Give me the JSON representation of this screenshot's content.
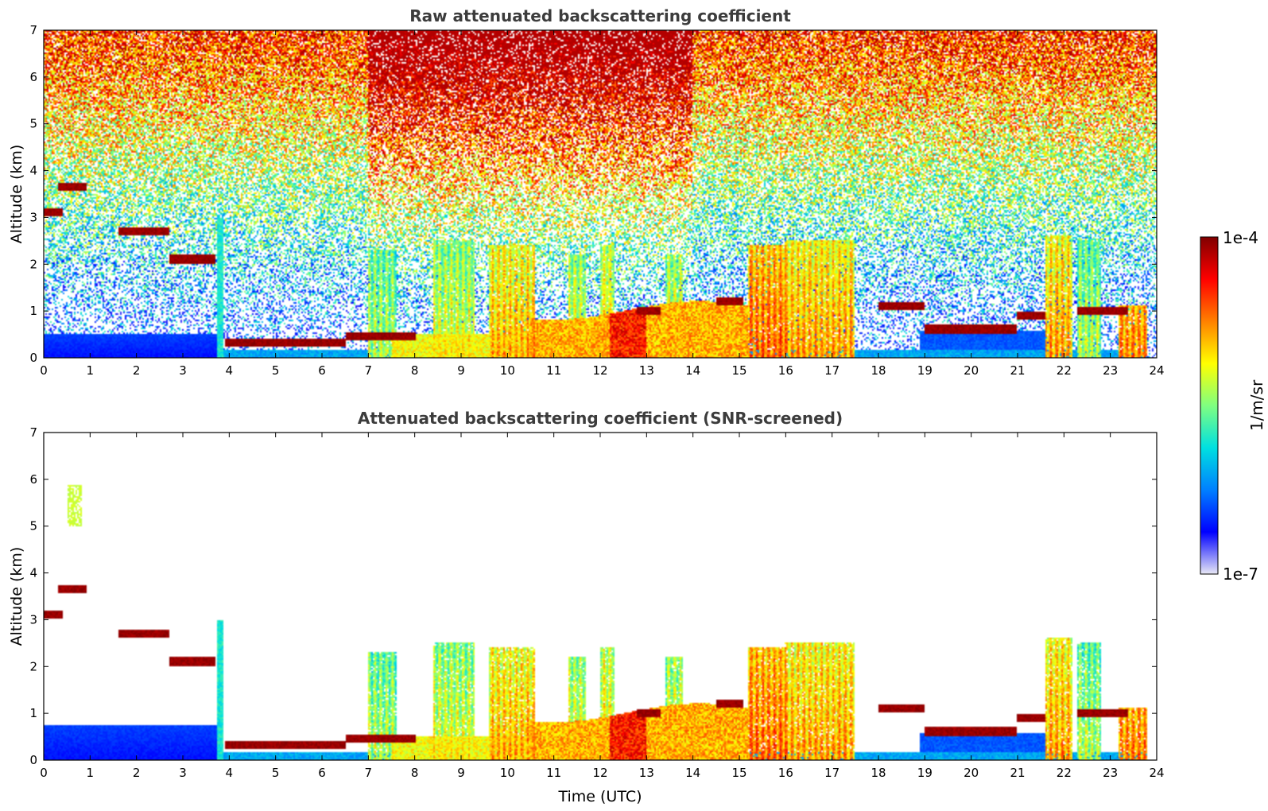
{
  "chart_data": [
    {
      "type": "heatmap",
      "title": "Raw attenuated backscattering coefficient",
      "xlabel": "",
      "ylabel": "Altitude (km)",
      "xlim": [
        0,
        24
      ],
      "ylim": [
        0,
        7
      ],
      "xticks": [
        0,
        1,
        2,
        3,
        4,
        5,
        6,
        7,
        8,
        9,
        10,
        11,
        12,
        13,
        14,
        15,
        16,
        17,
        18,
        19,
        20,
        21,
        22,
        23,
        24
      ],
      "yticks": [
        0,
        1,
        2,
        3,
        4,
        5,
        6,
        7
      ],
      "noise_above_signal": true,
      "features": {
        "surface_layer": [
          {
            "t0": 0,
            "t1": 3.8,
            "top": 0.5
          }
        ],
        "precip_columns": [
          {
            "t0": 7.0,
            "t1": 7.6,
            "top": 2.3,
            "level": 0.55
          },
          {
            "t0": 8.4,
            "t1": 9.3,
            "top": 2.5,
            "level": 0.6
          },
          {
            "t0": 9.6,
            "t1": 10.6,
            "top": 2.4,
            "level": 0.7
          },
          {
            "t0": 11.3,
            "t1": 11.7,
            "top": 2.2,
            "level": 0.6
          },
          {
            "t0": 12.0,
            "t1": 12.3,
            "top": 2.4,
            "level": 0.65
          },
          {
            "t0": 13.4,
            "t1": 13.8,
            "top": 2.2,
            "level": 0.6
          },
          {
            "t0": 15.2,
            "t1": 16.0,
            "top": 2.4,
            "level": 0.78
          },
          {
            "t0": 16.0,
            "t1": 17.5,
            "top": 2.5,
            "level": 0.72
          },
          {
            "t0": 21.6,
            "t1": 22.2,
            "top": 2.6,
            "level": 0.72
          },
          {
            "t0": 22.3,
            "t1": 22.8,
            "top": 2.5,
            "level": 0.55
          },
          {
            "t0": 23.2,
            "t1": 23.8,
            "top": 1.1,
            "level": 0.75
          }
        ],
        "cloud_layers": [
          {
            "t0": 0,
            "t1": 0.4,
            "alt": 3.1
          },
          {
            "t0": 0.3,
            "t1": 0.9,
            "alt": 3.65
          },
          {
            "t0": 1.6,
            "t1": 2.7,
            "alt": 2.7
          },
          {
            "t0": 2.7,
            "t1": 3.7,
            "alt": 2.1
          },
          {
            "t0": 3.9,
            "t1": 6.5,
            "alt": 0.3
          },
          {
            "t0": 6.5,
            "t1": 8.0,
            "alt": 0.45
          },
          {
            "t0": 12.8,
            "t1": 13.3,
            "alt": 1.0
          },
          {
            "t0": 14.5,
            "t1": 15.1,
            "alt": 1.2
          },
          {
            "t0": 18.0,
            "t1": 19.0,
            "alt": 1.1
          },
          {
            "t0": 19.0,
            "t1": 21.0,
            "alt": 0.6
          },
          {
            "t0": 21.0,
            "t1": 21.6,
            "alt": 0.9
          },
          {
            "t0": 22.3,
            "t1": 23.4,
            "alt": 1.0
          }
        ]
      }
    },
    {
      "type": "heatmap",
      "title": "Attenuated backscattering coefficient (SNR-screened)",
      "xlabel": "Time (UTC)",
      "ylabel": "Altitude (km)",
      "xlim": [
        0,
        24
      ],
      "ylim": [
        0,
        7
      ],
      "xticks": [
        0,
        1,
        2,
        3,
        4,
        5,
        6,
        7,
        8,
        9,
        10,
        11,
        12,
        13,
        14,
        15,
        16,
        17,
        18,
        19,
        20,
        21,
        22,
        23,
        24
      ],
      "yticks": [
        0,
        1,
        2,
        3,
        4,
        5,
        6,
        7
      ],
      "noise_above_signal": false,
      "features": {
        "surface_layer": [
          {
            "t0": 0,
            "t1": 3.8,
            "top": 0.75
          }
        ],
        "isolated_patch": [
          {
            "t0": 0.5,
            "t1": 0.8,
            "bottom": 5.0,
            "top": 5.9
          }
        ]
      }
    }
  ],
  "colorbar": {
    "label": "1/m/sr",
    "max_label": "1e-4",
    "min_label": "1e-7",
    "colormap": "jet",
    "stops": [
      "#e8e8f5",
      "#0000ff",
      "#0080ff",
      "#00e0e0",
      "#80ff80",
      "#ffff00",
      "#ff8000",
      "#ff0000",
      "#800000"
    ]
  }
}
